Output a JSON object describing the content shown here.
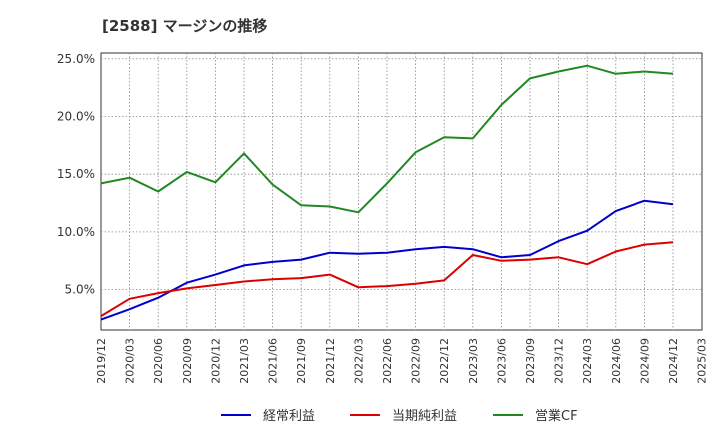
{
  "header": {
    "title": "[2588]  マージンの推移"
  },
  "chart_data": {
    "type": "line",
    "title": "[2588]  マージンの推移",
    "xlabel": "",
    "ylabel": "",
    "ylim": [
      1.5,
      25.5
    ],
    "y_ticks": [
      "5.0%",
      "10.0%",
      "15.0%",
      "20.0%",
      "25.0%"
    ],
    "y_tick_values": [
      5,
      10,
      15,
      20,
      25
    ],
    "x": [
      "2019/12",
      "2020/03",
      "2020/06",
      "2020/09",
      "2020/12",
      "2021/03",
      "2021/06",
      "2021/09",
      "2021/12",
      "2022/03",
      "2022/06",
      "2022/09",
      "2022/12",
      "2023/03",
      "2023/06",
      "2023/09",
      "2023/12",
      "2024/03",
      "2024/06",
      "2024/09",
      "2024/12",
      "2025/03"
    ],
    "grid": true,
    "legend_position": "bottom",
    "series": [
      {
        "name": "経常利益",
        "color": "#0000cc",
        "values": [
          2.4,
          3.3,
          4.3,
          5.6,
          6.3,
          7.1,
          7.4,
          7.6,
          8.2,
          8.1,
          8.2,
          8.5,
          8.7,
          8.5,
          7.8,
          8.0,
          9.2,
          10.1,
          11.8,
          12.7,
          12.4,
          null
        ]
      },
      {
        "name": "当期純利益",
        "color": "#dd0000",
        "values": [
          2.7,
          4.2,
          4.7,
          5.1,
          5.4,
          5.7,
          5.9,
          6.0,
          6.3,
          5.2,
          5.3,
          5.5,
          5.8,
          8.0,
          7.5,
          7.6,
          7.8,
          7.2,
          8.3,
          8.9,
          9.1,
          null
        ]
      },
      {
        "name": "営業CF",
        "color": "#228822",
        "values": [
          14.2,
          14.7,
          13.5,
          15.2,
          14.3,
          16.8,
          14.1,
          12.3,
          12.2,
          11.7,
          14.2,
          16.9,
          18.2,
          18.1,
          21.0,
          23.3,
          23.9,
          24.4,
          23.7,
          23.9,
          23.7,
          null
        ]
      }
    ]
  }
}
